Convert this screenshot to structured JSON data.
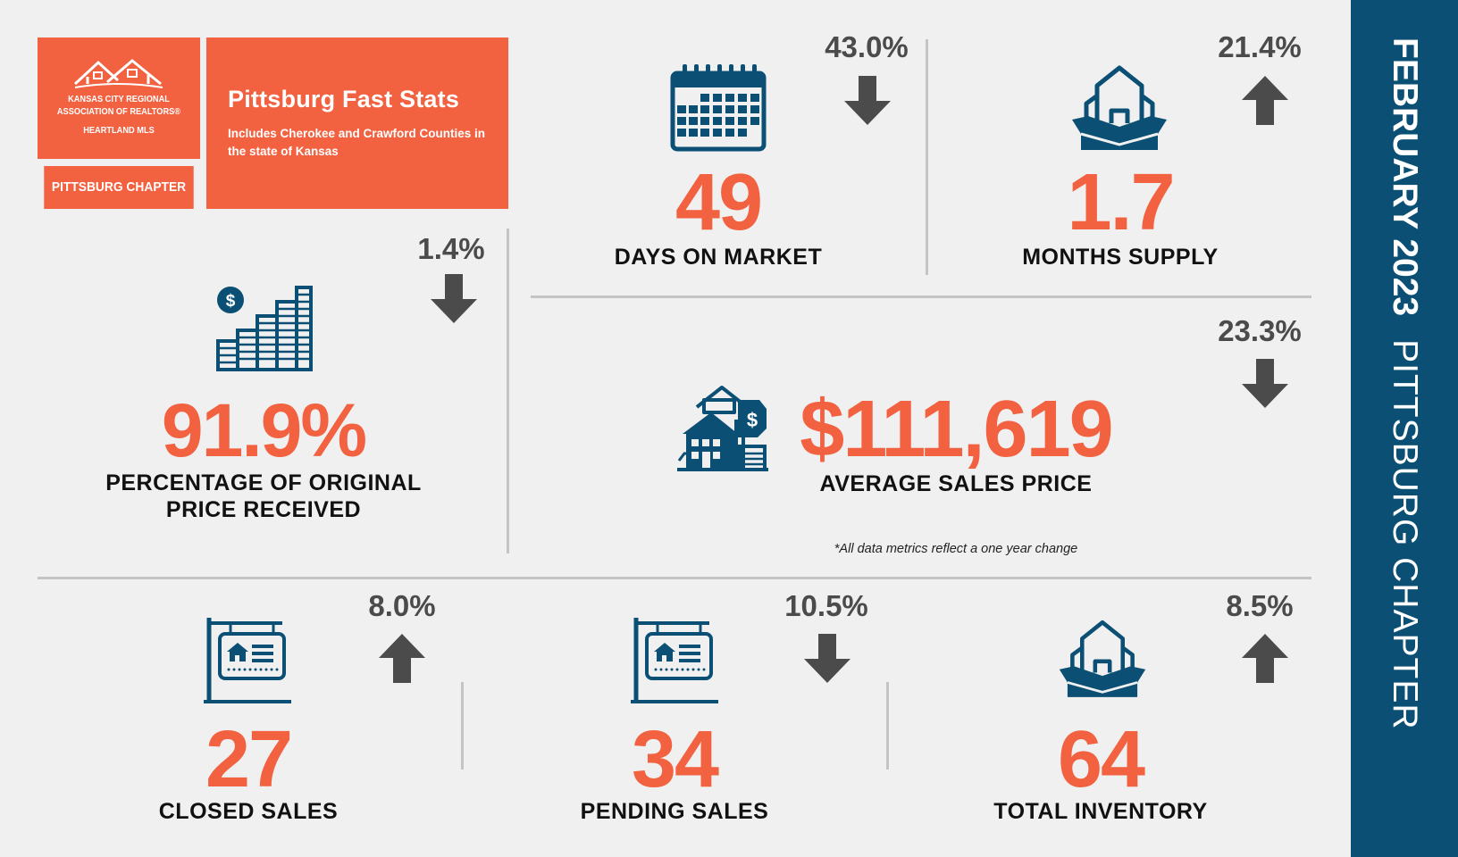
{
  "header": {
    "logo_line1": "KANSAS CITY REGIONAL",
    "logo_line2": "ASSOCIATION OF REALTORS®",
    "logo_line3": "HEARTLAND MLS",
    "chapter_label": "PITTSBURG CHAPTER",
    "title": "Pittsburg Fast Stats",
    "subtitle": "Includes Cherokee and Crawford Counties in the state of Kansas"
  },
  "sidebar": {
    "month": "FEBRUARY 2023",
    "chapter": "PITTSBURG CHAPTER"
  },
  "colors": {
    "accent": "#f26140",
    "navy": "#0b4f74",
    "arrow": "#4b4b4b",
    "divider": "#c4c4c4",
    "background": "#f0f0f0"
  },
  "stats": {
    "days_on_market": {
      "value": "49",
      "label": "DAYS ON MARKET",
      "change": "43.0%",
      "direction": "down",
      "icon": "calendar-icon"
    },
    "months_supply": {
      "value": "1.7",
      "label": "MONTHS SUPPLY",
      "change": "21.4%",
      "direction": "up",
      "icon": "houses-in-box-icon"
    },
    "pct_original_price": {
      "value": "91.9%",
      "label_line1": "PERCENTAGE OF ORIGINAL",
      "label_line2": "PRICE RECEIVED",
      "change": "1.4%",
      "direction": "down",
      "icon": "coin-stacks-icon"
    },
    "avg_sales_price": {
      "value": "$111,619",
      "label": "AVERAGE SALES PRICE",
      "change": "23.3%",
      "direction": "down",
      "icon": "houses-price-tag-icon"
    },
    "closed_sales": {
      "value": "27",
      "label": "CLOSED SALES",
      "change": "8.0%",
      "direction": "up",
      "icon": "for-sale-sign-icon"
    },
    "pending_sales": {
      "value": "34",
      "label": "PENDING SALES",
      "change": "10.5%",
      "direction": "down",
      "icon": "for-sale-sign-icon"
    },
    "total_inventory": {
      "value": "64",
      "label": "TOTAL INVENTORY",
      "change": "8.5%",
      "direction": "up",
      "icon": "houses-in-box-icon"
    }
  },
  "footnote": "*All data metrics reflect a one year change"
}
